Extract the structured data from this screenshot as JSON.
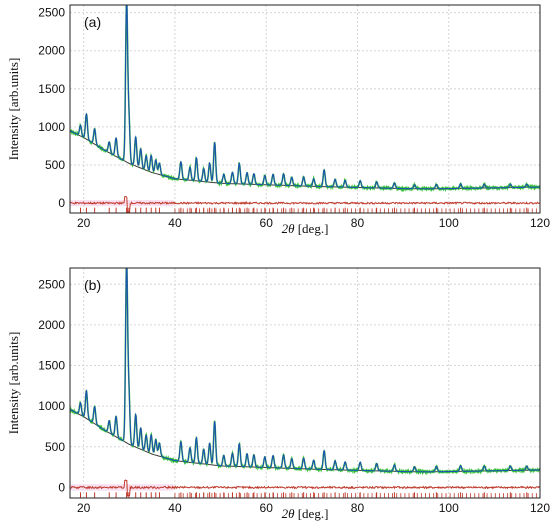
{
  "chart_data": [
    {
      "type": "line",
      "panel_label": "(a)",
      "xlabel_italic": "2θ",
      "xlabel_rest": " [deg.]",
      "ylabel": "Intensity [arb.units]",
      "xlim": [
        17,
        120
      ],
      "ylim": [
        -130,
        2600
      ],
      "xticks": [
        20,
        40,
        60,
        80,
        100,
        120
      ],
      "yticks": [
        0,
        500,
        1000,
        1500,
        2000,
        2500
      ],
      "grid": true,
      "colors": {
        "observed": "#35c135",
        "calculated": "#1e4fb5",
        "background": "#3a3a3a",
        "difference": "#c0392b",
        "reflection_ticks": "#c0392b"
      },
      "background_curve": {
        "x": [
          17,
          20,
          25,
          30,
          35,
          40,
          50,
          60,
          70,
          80,
          90,
          95,
          100,
          110,
          120
        ],
        "y": [
          950,
          860,
          680,
          520,
          400,
          320,
          260,
          240,
          220,
          205,
          190,
          188,
          190,
          200,
          210
        ]
      },
      "peaks": [
        {
          "x": 19.3,
          "height": 140
        },
        {
          "x": 20.6,
          "height": 330
        },
        {
          "x": 22.4,
          "height": 200
        },
        {
          "x": 25.6,
          "height": 140
        },
        {
          "x": 27.1,
          "height": 240
        },
        {
          "x": 29.4,
          "height": 2100
        },
        {
          "x": 29.9,
          "height": 600
        },
        {
          "x": 31.4,
          "height": 380
        },
        {
          "x": 32.5,
          "height": 250
        },
        {
          "x": 33.7,
          "height": 190
        },
        {
          "x": 34.8,
          "height": 220
        },
        {
          "x": 35.8,
          "height": 180
        },
        {
          "x": 36.6,
          "height": 150
        },
        {
          "x": 41.3,
          "height": 230
        },
        {
          "x": 43.3,
          "height": 170
        },
        {
          "x": 44.7,
          "height": 300
        },
        {
          "x": 46.3,
          "height": 170
        },
        {
          "x": 47.6,
          "height": 250
        },
        {
          "x": 48.7,
          "height": 530
        },
        {
          "x": 50.7,
          "height": 120
        },
        {
          "x": 52.6,
          "height": 150
        },
        {
          "x": 54.1,
          "height": 270
        },
        {
          "x": 55.8,
          "height": 150
        },
        {
          "x": 57.3,
          "height": 140
        },
        {
          "x": 59.7,
          "height": 120
        },
        {
          "x": 61.5,
          "height": 140
        },
        {
          "x": 63.8,
          "height": 150
        },
        {
          "x": 65.6,
          "height": 110
        },
        {
          "x": 68.2,
          "height": 120
        },
        {
          "x": 70.4,
          "height": 100
        },
        {
          "x": 72.7,
          "height": 220
        },
        {
          "x": 75.1,
          "height": 100
        },
        {
          "x": 77.3,
          "height": 90
        },
        {
          "x": 80.6,
          "height": 90
        },
        {
          "x": 84.2,
          "height": 80
        },
        {
          "x": 88.1,
          "height": 70
        },
        {
          "x": 92.5,
          "height": 50
        },
        {
          "x": 97.3,
          "height": 55
        },
        {
          "x": 102.6,
          "height": 60
        },
        {
          "x": 107.8,
          "height": 50
        },
        {
          "x": 113.5,
          "height": 45
        },
        {
          "x": 117.1,
          "height": 40
        }
      ],
      "difference_offset": 0
    },
    {
      "type": "line",
      "panel_label": "(b)",
      "xlabel_italic": "2θ",
      "xlabel_rest": " [deg.]",
      "ylabel": "Intensity [arb.units]",
      "xlim": [
        17,
        120
      ],
      "ylim": [
        -130,
        2700
      ],
      "xticks": [
        20,
        40,
        60,
        80,
        100,
        120
      ],
      "yticks": [
        0,
        500,
        1000,
        1500,
        2000,
        2500
      ],
      "grid": true,
      "colors": {
        "observed": "#35c135",
        "calculated": "#1e4fb5",
        "background": "#3a3a3a",
        "difference": "#c0392b",
        "reflection_ticks": "#c0392b"
      },
      "background_curve": {
        "x": [
          17,
          20,
          25,
          30,
          35,
          40,
          50,
          60,
          70,
          80,
          90,
          95,
          100,
          110,
          120
        ],
        "y": [
          960,
          870,
          690,
          530,
          410,
          330,
          265,
          245,
          225,
          210,
          195,
          192,
          195,
          205,
          215
        ]
      },
      "peaks": [
        {
          "x": 19.3,
          "height": 150
        },
        {
          "x": 20.6,
          "height": 340
        },
        {
          "x": 22.4,
          "height": 210
        },
        {
          "x": 25.6,
          "height": 150
        },
        {
          "x": 27.1,
          "height": 250
        },
        {
          "x": 29.4,
          "height": 2200
        },
        {
          "x": 29.9,
          "height": 620
        },
        {
          "x": 31.4,
          "height": 400
        },
        {
          "x": 32.5,
          "height": 260
        },
        {
          "x": 33.7,
          "height": 200
        },
        {
          "x": 34.8,
          "height": 230
        },
        {
          "x": 35.8,
          "height": 190
        },
        {
          "x": 36.6,
          "height": 160
        },
        {
          "x": 41.3,
          "height": 240
        },
        {
          "x": 43.3,
          "height": 180
        },
        {
          "x": 44.7,
          "height": 310
        },
        {
          "x": 46.3,
          "height": 180
        },
        {
          "x": 47.6,
          "height": 260
        },
        {
          "x": 48.7,
          "height": 540
        },
        {
          "x": 50.7,
          "height": 130
        },
        {
          "x": 52.6,
          "height": 160
        },
        {
          "x": 54.1,
          "height": 280
        },
        {
          "x": 55.8,
          "height": 160
        },
        {
          "x": 57.3,
          "height": 150
        },
        {
          "x": 59.7,
          "height": 130
        },
        {
          "x": 61.5,
          "height": 150
        },
        {
          "x": 63.8,
          "height": 160
        },
        {
          "x": 65.6,
          "height": 120
        },
        {
          "x": 68.2,
          "height": 130
        },
        {
          "x": 70.4,
          "height": 110
        },
        {
          "x": 72.7,
          "height": 230
        },
        {
          "x": 75.1,
          "height": 110
        },
        {
          "x": 77.3,
          "height": 100
        },
        {
          "x": 80.6,
          "height": 100
        },
        {
          "x": 84.2,
          "height": 90
        },
        {
          "x": 88.1,
          "height": 80
        },
        {
          "x": 92.5,
          "height": 60
        },
        {
          "x": 97.3,
          "height": 65
        },
        {
          "x": 102.6,
          "height": 70
        },
        {
          "x": 107.8,
          "height": 60
        },
        {
          "x": 113.5,
          "height": 55
        },
        {
          "x": 117.1,
          "height": 50
        }
      ],
      "difference_offset": 0
    }
  ]
}
